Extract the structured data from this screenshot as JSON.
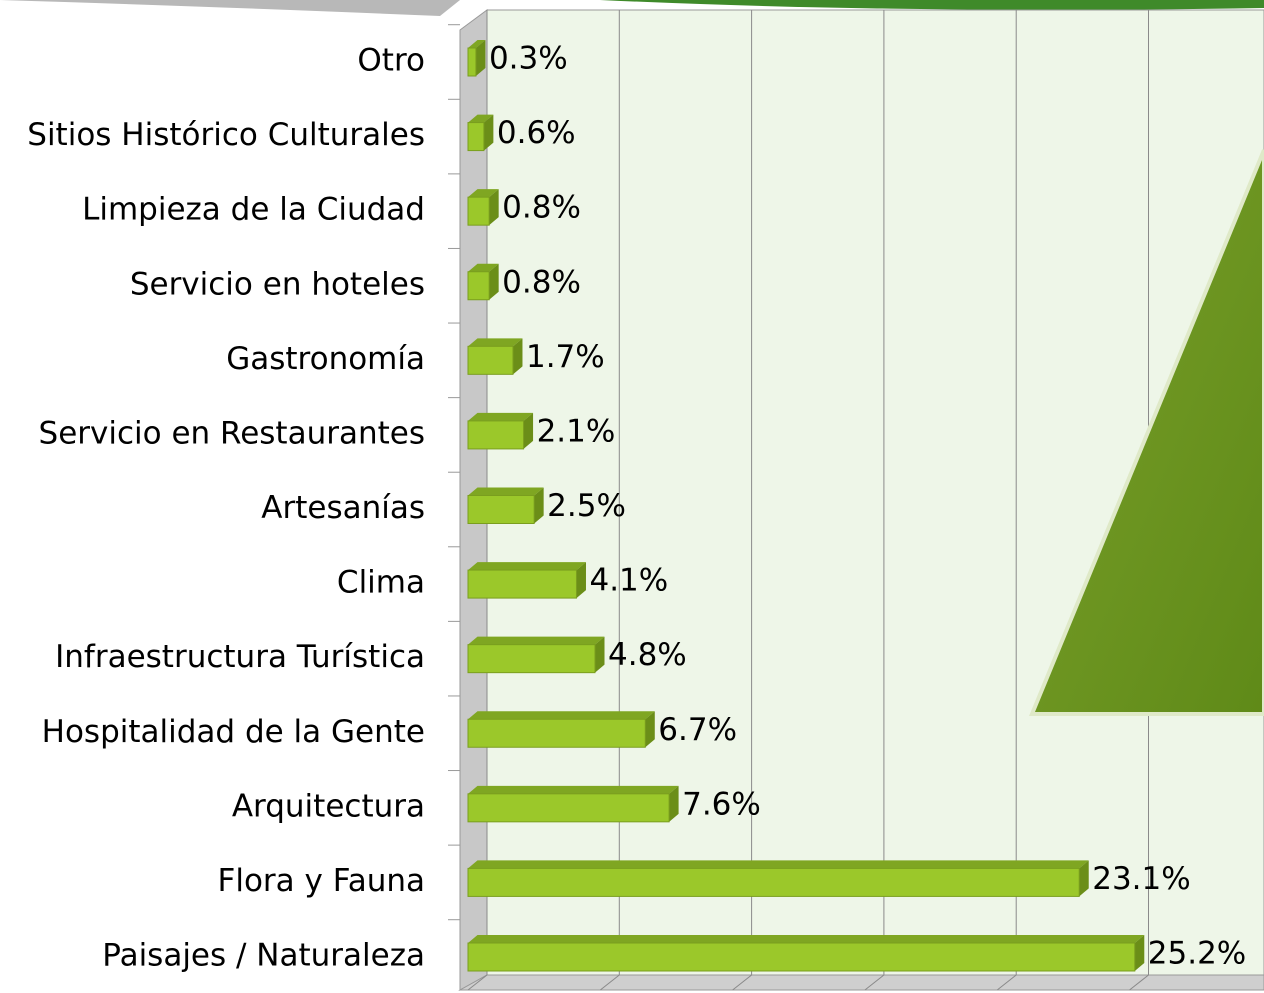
{
  "chart_data": {
    "type": "bar",
    "orientation": "horizontal",
    "categories": [
      "Otro",
      "Sitios Histórico Culturales",
      "Limpieza de la Ciudad",
      "Servicio en hoteles",
      "Gastronomía",
      "Servicio en Restaurantes",
      "Artesanías",
      "Clima",
      "Infraestructura Turística",
      "Hospitalidad de la Gente",
      "Arquitectura",
      "Flora y Fauna",
      "Paisajes / Naturaleza"
    ],
    "values": [
      0.3,
      0.6,
      0.8,
      0.8,
      1.7,
      2.1,
      2.5,
      4.1,
      4.8,
      6.7,
      7.6,
      23.1,
      25.2
    ],
    "value_labels": [
      "0.3%",
      "0.6%",
      "0.8%",
      "0.8%",
      "1.7%",
      "2.1%",
      "2.5%",
      "4.1%",
      "4.8%",
      "6.7%",
      "7.6%",
      "23.1%",
      "25.2%"
    ],
    "color": "#9bc82a",
    "xlim": [
      0,
      30
    ],
    "xticks": [
      0,
      5,
      10,
      15,
      20,
      25
    ],
    "grid": true
  }
}
